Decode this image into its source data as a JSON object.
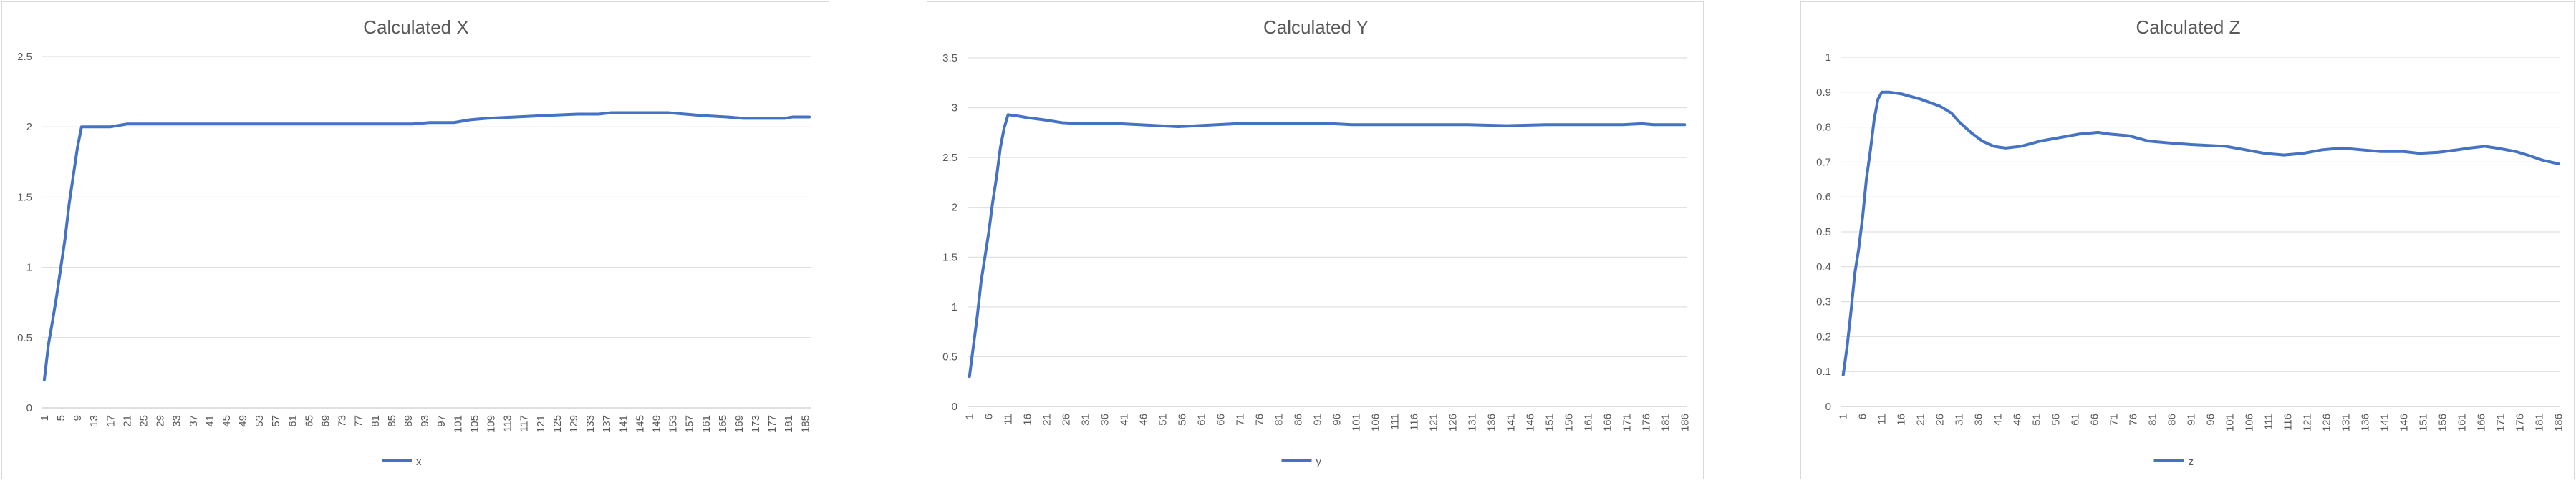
{
  "chart_data": [
    {
      "type": "line",
      "title": "Calculated X",
      "xlabel": "",
      "ylabel": "",
      "ylim": [
        0,
        2.5
      ],
      "yticks": [
        "0",
        "0.5",
        "1",
        "1.5",
        "2",
        "2.5"
      ],
      "x_start": 1,
      "x_end": 186,
      "x_tick_step": 4,
      "grid": true,
      "legend_position": "bottom",
      "series": [
        {
          "name": "x",
          "color": "#4472c4",
          "points": [
            [
              1,
              0.2
            ],
            [
              2,
              0.45
            ],
            [
              3,
              0.62
            ],
            [
              4,
              0.8
            ],
            [
              5,
              1.0
            ],
            [
              6,
              1.2
            ],
            [
              7,
              1.45
            ],
            [
              8,
              1.65
            ],
            [
              9,
              1.85
            ],
            [
              10,
              2.0
            ],
            [
              12,
              2.0
            ],
            [
              17,
              2.0
            ],
            [
              19,
              2.01
            ],
            [
              21,
              2.02
            ],
            [
              25,
              2.02
            ],
            [
              60,
              2.02
            ],
            [
              90,
              2.02
            ],
            [
              94,
              2.03
            ],
            [
              100,
              2.03
            ],
            [
              104,
              2.05
            ],
            [
              108,
              2.06
            ],
            [
              115,
              2.07
            ],
            [
              122,
              2.08
            ],
            [
              130,
              2.09
            ],
            [
              135,
              2.09
            ],
            [
              138,
              2.1
            ],
            [
              146,
              2.1
            ],
            [
              152,
              2.1
            ],
            [
              156,
              2.09
            ],
            [
              160,
              2.08
            ],
            [
              166,
              2.07
            ],
            [
              170,
              2.06
            ],
            [
              175,
              2.06
            ],
            [
              180,
              2.06
            ],
            [
              182,
              2.07
            ],
            [
              186,
              2.07
            ]
          ]
        }
      ]
    },
    {
      "type": "line",
      "title": "Calculated Y",
      "xlabel": "",
      "ylabel": "",
      "ylim": [
        0,
        3.5
      ],
      "yticks": [
        "0",
        "0.5",
        "1",
        "1.5",
        "2",
        "2.5",
        "3",
        "3.5"
      ],
      "x_start": 1,
      "x_end": 186,
      "x_tick_step": 5,
      "grid": true,
      "legend_position": "bottom",
      "series": [
        {
          "name": "y",
          "color": "#4472c4",
          "points": [
            [
              1,
              0.3
            ],
            [
              2,
              0.6
            ],
            [
              3,
              0.9
            ],
            [
              4,
              1.25
            ],
            [
              5,
              1.5
            ],
            [
              6,
              1.75
            ],
            [
              7,
              2.05
            ],
            [
              8,
              2.3
            ],
            [
              9,
              2.6
            ],
            [
              10,
              2.8
            ],
            [
              11,
              2.93
            ],
            [
              13,
              2.92
            ],
            [
              16,
              2.9
            ],
            [
              20,
              2.88
            ],
            [
              25,
              2.85
            ],
            [
              30,
              2.84
            ],
            [
              40,
              2.84
            ],
            [
              45,
              2.83
            ],
            [
              50,
              2.82
            ],
            [
              55,
              2.81
            ],
            [
              60,
              2.82
            ],
            [
              70,
              2.84
            ],
            [
              80,
              2.84
            ],
            [
              95,
              2.84
            ],
            [
              100,
              2.83
            ],
            [
              110,
              2.83
            ],
            [
              130,
              2.83
            ],
            [
              140,
              2.82
            ],
            [
              150,
              2.83
            ],
            [
              170,
              2.83
            ],
            [
              175,
              2.84
            ],
            [
              178,
              2.83
            ],
            [
              186,
              2.83
            ]
          ]
        }
      ]
    },
    {
      "type": "line",
      "title": "Calculated Z",
      "xlabel": "",
      "ylabel": "",
      "ylim": [
        0,
        1
      ],
      "yticks": [
        "0",
        "0.1",
        "0.2",
        "0.3",
        "0.4",
        "0.5",
        "0.6",
        "0.7",
        "0.8",
        "0.9",
        "1"
      ],
      "x_start": 1,
      "x_end": 186,
      "x_tick_step": 5,
      "grid": true,
      "legend_position": "bottom",
      "series": [
        {
          "name": "z",
          "color": "#4472c4",
          "points": [
            [
              1,
              0.09
            ],
            [
              2,
              0.17
            ],
            [
              3,
              0.27
            ],
            [
              4,
              0.38
            ],
            [
              5,
              0.45
            ],
            [
              6,
              0.54
            ],
            [
              7,
              0.65
            ],
            [
              8,
              0.73
            ],
            [
              9,
              0.82
            ],
            [
              10,
              0.88
            ],
            [
              11,
              0.9
            ],
            [
              13,
              0.9
            ],
            [
              16,
              0.895
            ],
            [
              21,
              0.88
            ],
            [
              26,
              0.86
            ],
            [
              29,
              0.84
            ],
            [
              31,
              0.815
            ],
            [
              34,
              0.785
            ],
            [
              37,
              0.76
            ],
            [
              40,
              0.745
            ],
            [
              43,
              0.74
            ],
            [
              47,
              0.745
            ],
            [
              52,
              0.76
            ],
            [
              57,
              0.77
            ],
            [
              62,
              0.78
            ],
            [
              67,
              0.785
            ],
            [
              70,
              0.78
            ],
            [
              75,
              0.775
            ],
            [
              80,
              0.76
            ],
            [
              85,
              0.755
            ],
            [
              91,
              0.75
            ],
            [
              100,
              0.745
            ],
            [
              105,
              0.735
            ],
            [
              110,
              0.725
            ],
            [
              115,
              0.72
            ],
            [
              120,
              0.725
            ],
            [
              125,
              0.735
            ],
            [
              130,
              0.74
            ],
            [
              135,
              0.735
            ],
            [
              140,
              0.73
            ],
            [
              146,
              0.73
            ],
            [
              150,
              0.725
            ],
            [
              155,
              0.728
            ],
            [
              160,
              0.735
            ],
            [
              163,
              0.74
            ],
            [
              167,
              0.745
            ],
            [
              170,
              0.74
            ],
            [
              175,
              0.73
            ],
            [
              178,
              0.72
            ],
            [
              182,
              0.705
            ],
            [
              186,
              0.695
            ]
          ]
        }
      ]
    }
  ]
}
